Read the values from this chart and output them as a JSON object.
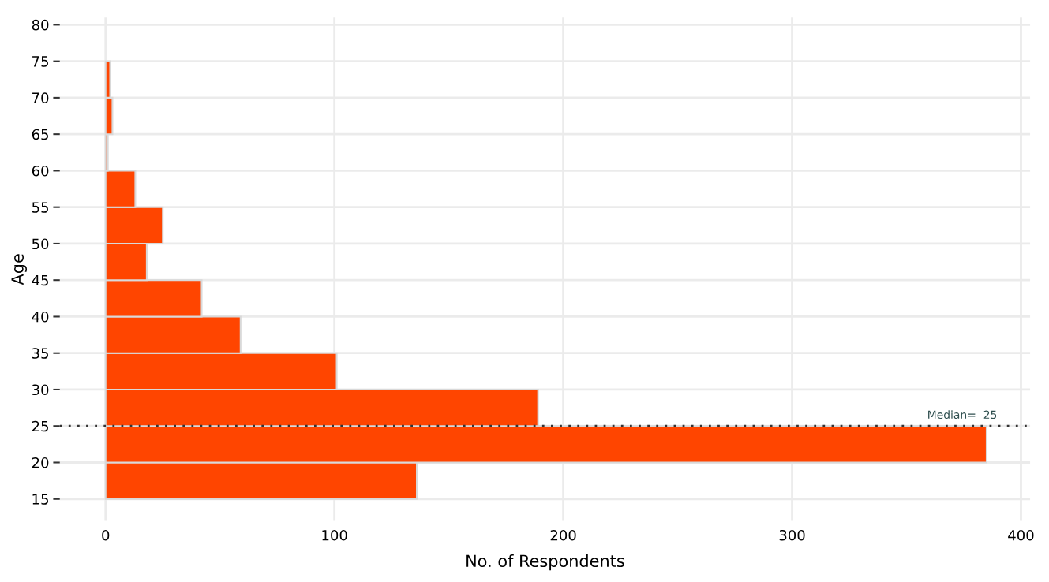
{
  "chart_data": {
    "type": "histogram",
    "orientation": "horizontal",
    "xlabel": "No. of Respondents",
    "ylabel": "Age",
    "bins": [
      15,
      20,
      25,
      30,
      35,
      40,
      45,
      50,
      55,
      60,
      65,
      70,
      75,
      80
    ],
    "values": [
      136,
      385,
      189,
      101,
      59,
      42,
      18,
      25,
      13,
      1,
      3,
      2,
      null
    ],
    "color": "#ff4500",
    "xlim": [
      -20,
      404
    ],
    "xticks": [
      0,
      100,
      200,
      300,
      400
    ],
    "ylim": [
      12,
      81
    ],
    "yticks": [
      15,
      20,
      25,
      30,
      35,
      40,
      45,
      50,
      55,
      60,
      65,
      70,
      75,
      80
    ],
    "ref_lines": [
      {
        "axis": "y",
        "value": 25,
        "label": "Median=  25",
        "color": "#333333",
        "line_style": "dotted"
      }
    ],
    "grid": true
  }
}
